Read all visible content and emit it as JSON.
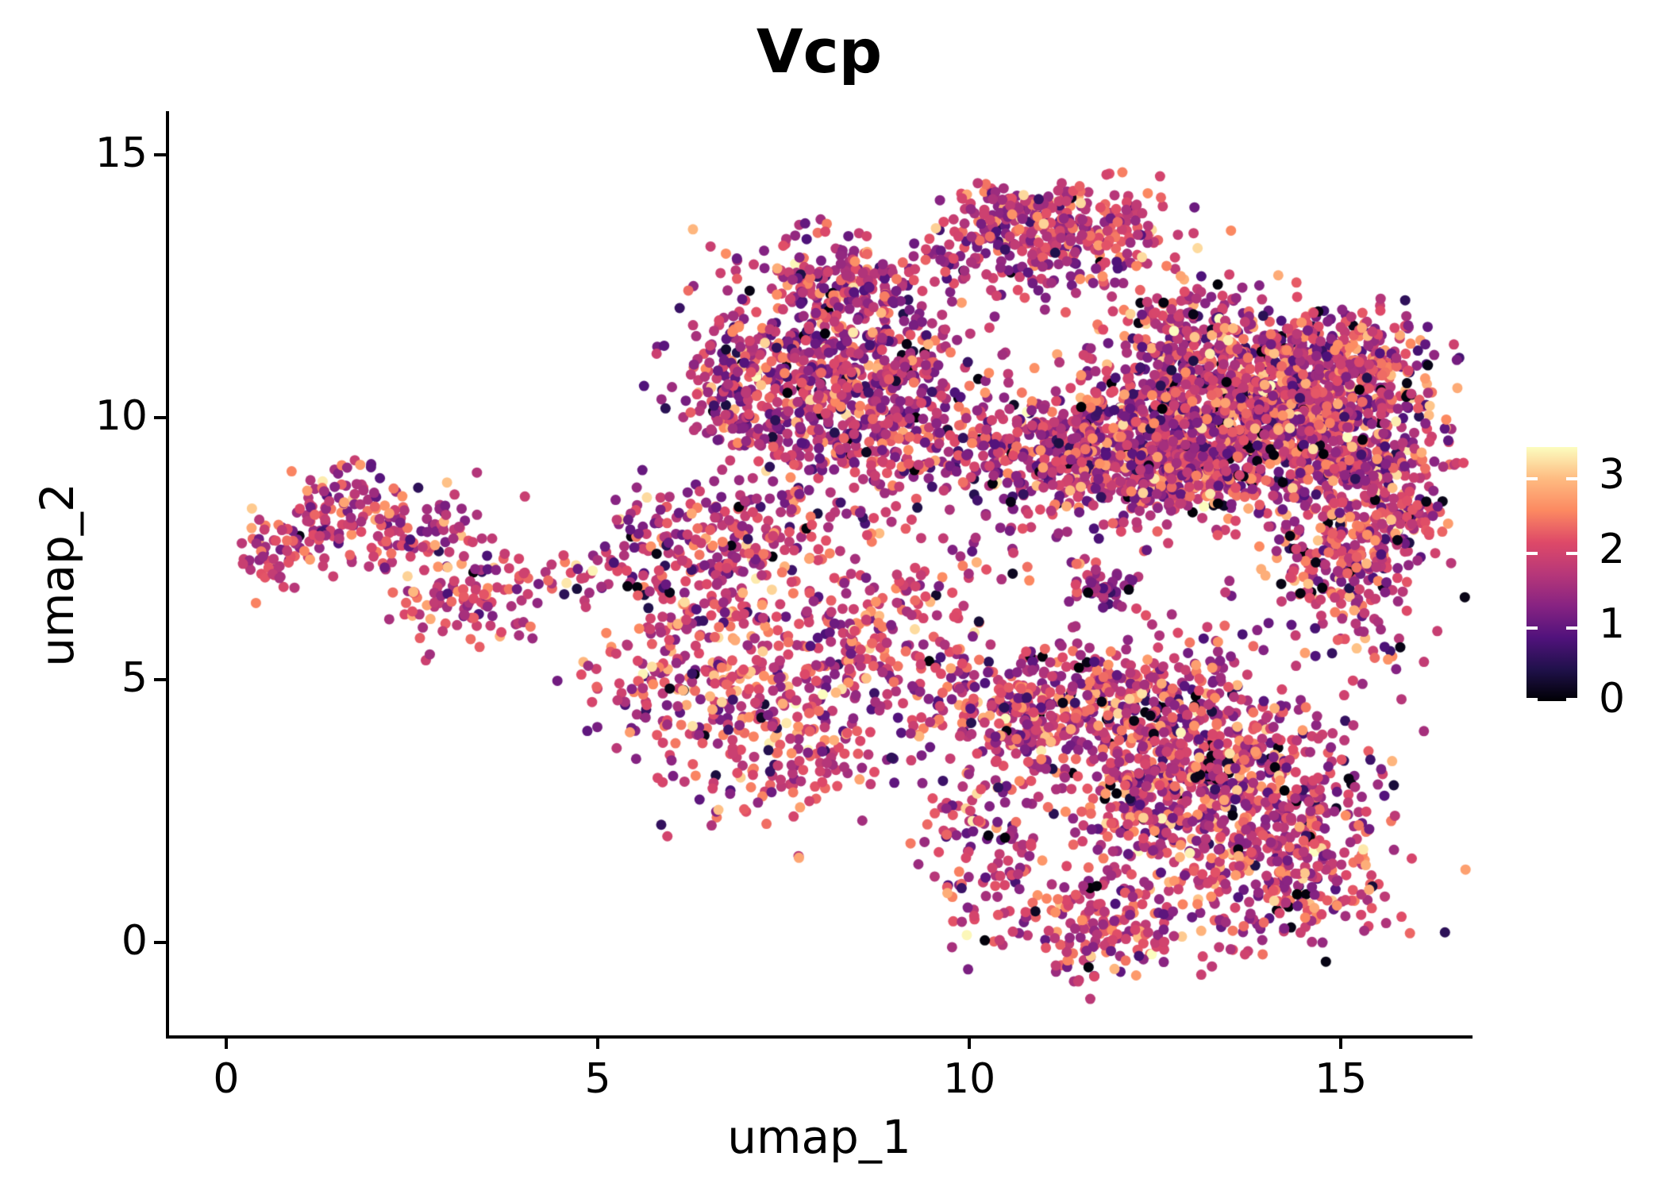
{
  "title": "Vcp",
  "axes": {
    "x": {
      "label": "umap_1",
      "ticks": [
        0,
        5,
        10,
        15
      ]
    },
    "y": {
      "label": "umap_2",
      "ticks": [
        0,
        5,
        10,
        15
      ]
    }
  },
  "colorbar": {
    "ticks": [
      0,
      1,
      2,
      3
    ]
  },
  "chart_data": {
    "type": "scatter",
    "title": "Vcp",
    "xlabel": "umap_1",
    "ylabel": "umap_2",
    "xlim": [
      -0.79,
      16.75
    ],
    "ylim": [
      -1.8,
      15.8
    ],
    "x_ticks": [
      0,
      5,
      10,
      15
    ],
    "y_ticks": [
      0,
      5,
      10,
      15
    ],
    "grid": false,
    "legend_position": "right-colorbar",
    "color_scale": {
      "name": "magma",
      "min": 0,
      "max": 3.4,
      "colorbar_ticks": [
        0,
        1,
        2,
        3
      ],
      "stops": [
        "#000004",
        "#20114b",
        "#51127c",
        "#872382",
        "#b73779",
        "#de4968",
        "#fc8961",
        "#febb81",
        "#fcfdbf"
      ]
    },
    "point_radius_px": 6.5,
    "seed": 42,
    "n_points": 7658,
    "p_zero": 0.028,
    "p_high": 0.012,
    "clusters": [
      {
        "name": "left-a1",
        "n": 55,
        "cx": 0.6,
        "cy": 7.35,
        "sx": 0.3,
        "sy": 0.27,
        "vmean": 2.0,
        "vsd": 0.5
      },
      {
        "name": "left-a2",
        "n": 95,
        "cx": 1.5,
        "cy": 8.3,
        "sx": 0.45,
        "sy": 0.5,
        "vmean": 1.85,
        "vsd": 0.55
      },
      {
        "name": "left-a3",
        "n": 85,
        "cx": 2.5,
        "cy": 7.8,
        "sx": 0.55,
        "sy": 0.4,
        "vmean": 1.8,
        "vsd": 0.55
      },
      {
        "name": "left-a4",
        "n": 90,
        "cx": 3.1,
        "cy": 6.4,
        "sx": 0.42,
        "sy": 0.45,
        "vmean": 1.85,
        "vsd": 0.55
      },
      {
        "name": "left-a5",
        "n": 18,
        "cx": 3.95,
        "cy": 6.9,
        "sx": 0.35,
        "sy": 0.3,
        "vmean": 1.5,
        "vsd": 0.6
      },
      {
        "name": "mid-b1",
        "n": 120,
        "cx": 6.1,
        "cy": 7.6,
        "sx": 0.55,
        "sy": 0.6,
        "vmean": 1.8,
        "vsd": 0.6
      },
      {
        "name": "mid-b2",
        "n": 100,
        "cx": 7.3,
        "cy": 7.85,
        "sx": 0.6,
        "sy": 0.45,
        "vmean": 1.8,
        "vsd": 0.6
      },
      {
        "name": "mid-b3",
        "n": 150,
        "cx": 6.3,
        "cy": 5.6,
        "sx": 0.6,
        "sy": 0.95,
        "vmean": 1.9,
        "vsd": 0.6
      },
      {
        "name": "mid-b4",
        "n": 260,
        "cx": 7.6,
        "cy": 5.3,
        "sx": 0.8,
        "sy": 1.0,
        "vmean": 1.95,
        "vsd": 0.6
      },
      {
        "name": "mid-b5",
        "n": 120,
        "cx": 8.8,
        "cy": 5.6,
        "sx": 0.55,
        "sy": 0.9,
        "vmean": 1.8,
        "vsd": 0.6
      },
      {
        "name": "mid-b6",
        "n": 80,
        "cx": 7.6,
        "cy": 3.4,
        "sx": 0.55,
        "sy": 0.55,
        "vmean": 1.9,
        "vsd": 0.55
      },
      {
        "name": "mid-b7",
        "n": 40,
        "cx": 5.6,
        "cy": 4.7,
        "sx": 0.4,
        "sy": 0.6,
        "vmean": 1.8,
        "vsd": 0.6
      },
      {
        "name": "top-c1",
        "n": 200,
        "cx": 8.1,
        "cy": 12.6,
        "sx": 0.6,
        "sy": 0.45,
        "vmean": 1.7,
        "vsd": 0.6
      },
      {
        "name": "top-c2",
        "n": 240,
        "cx": 7.6,
        "cy": 11.2,
        "sx": 0.7,
        "sy": 0.65,
        "vmean": 1.65,
        "vsd": 0.6
      },
      {
        "name": "top-c3",
        "n": 240,
        "cx": 8.8,
        "cy": 10.9,
        "sx": 0.7,
        "sy": 0.7,
        "vmean": 1.7,
        "vsd": 0.6
      },
      {
        "name": "top-c4",
        "n": 140,
        "cx": 7.0,
        "cy": 10.3,
        "sx": 0.45,
        "sy": 0.6,
        "vmean": 1.6,
        "vsd": 0.6
      },
      {
        "name": "top-c5",
        "n": 280,
        "cx": 8.7,
        "cy": 9.6,
        "sx": 0.95,
        "sy": 0.55,
        "vmean": 1.7,
        "vsd": 0.6
      },
      {
        "name": "peak-d1",
        "n": 150,
        "cx": 10.8,
        "cy": 13.9,
        "sx": 0.55,
        "sy": 0.33,
        "vmean": 1.8,
        "vsd": 0.55
      },
      {
        "name": "peak-d2",
        "n": 120,
        "cx": 11.9,
        "cy": 13.55,
        "sx": 0.6,
        "sy": 0.45,
        "vmean": 1.8,
        "vsd": 0.55
      },
      {
        "name": "peak-d3",
        "n": 80,
        "cx": 10.3,
        "cy": 13.2,
        "sx": 0.45,
        "sy": 0.35,
        "vmean": 1.75,
        "vsd": 0.55
      },
      {
        "name": "peak-d4",
        "n": 50,
        "cx": 11.3,
        "cy": 12.9,
        "sx": 0.7,
        "sy": 0.3,
        "vmean": 1.7,
        "vsd": 0.55
      },
      {
        "name": "right-e1",
        "n": 600,
        "cx": 14.7,
        "cy": 9.9,
        "sx": 0.75,
        "sy": 0.75,
        "vmean": 1.8,
        "vsd": 0.6
      },
      {
        "name": "right-e2",
        "n": 450,
        "cx": 13.5,
        "cy": 10.3,
        "sx": 0.75,
        "sy": 0.7,
        "vmean": 1.75,
        "vsd": 0.6
      },
      {
        "name": "right-e3",
        "n": 350,
        "cx": 12.4,
        "cy": 9.9,
        "sx": 0.7,
        "sy": 0.65,
        "vmean": 1.7,
        "vsd": 0.6
      },
      {
        "name": "right-e4",
        "n": 130,
        "cx": 12.9,
        "cy": 11.9,
        "sx": 0.5,
        "sy": 0.4,
        "vmean": 1.75,
        "vsd": 0.6
      },
      {
        "name": "right-e5",
        "n": 130,
        "cx": 14.0,
        "cy": 11.2,
        "sx": 0.55,
        "sy": 0.45,
        "vmean": 1.75,
        "vsd": 0.6
      },
      {
        "name": "right-e6",
        "n": 200,
        "cx": 15.1,
        "cy": 11.2,
        "sx": 0.55,
        "sy": 0.5,
        "vmean": 1.8,
        "vsd": 0.6
      },
      {
        "name": "right-e7",
        "n": 340,
        "cx": 12.6,
        "cy": 8.9,
        "sx": 1.0,
        "sy": 0.55,
        "vmean": 1.75,
        "vsd": 0.6
      },
      {
        "name": "right-e8",
        "n": 250,
        "cx": 11.2,
        "cy": 9.3,
        "sx": 0.7,
        "sy": 0.6,
        "vmean": 1.65,
        "vsd": 0.6
      },
      {
        "name": "right-e9",
        "n": 150,
        "cx": 15.4,
        "cy": 8.8,
        "sx": 0.5,
        "sy": 0.45,
        "vmean": 1.8,
        "vsd": 0.6
      },
      {
        "name": "arm-f1",
        "n": 150,
        "cx": 15.2,
        "cy": 7.7,
        "sx": 0.55,
        "sy": 0.5,
        "vmean": 1.85,
        "vsd": 0.6
      },
      {
        "name": "arm-f2",
        "n": 100,
        "cx": 14.9,
        "cy": 6.9,
        "sx": 0.5,
        "sy": 0.4,
        "vmean": 1.8,
        "vsd": 0.6
      },
      {
        "name": "arm-f3",
        "n": 45,
        "cx": 15.85,
        "cy": 7.9,
        "sx": 0.28,
        "sy": 0.4,
        "vmean": 1.8,
        "vsd": 0.6
      },
      {
        "name": "bot-g1",
        "n": 250,
        "cx": 10.6,
        "cy": 4.3,
        "sx": 0.6,
        "sy": 0.6,
        "vmean": 1.85,
        "vsd": 0.6
      },
      {
        "name": "bot-g2",
        "n": 300,
        "cx": 12.0,
        "cy": 4.6,
        "sx": 0.8,
        "sy": 0.55,
        "vmean": 1.8,
        "vsd": 0.6
      },
      {
        "name": "bot-g3",
        "n": 500,
        "cx": 13.8,
        "cy": 2.9,
        "sx": 0.9,
        "sy": 1.0,
        "vmean": 1.85,
        "vsd": 0.6
      },
      {
        "name": "bot-g4",
        "n": 280,
        "cx": 12.7,
        "cy": 2.8,
        "sx": 0.75,
        "sy": 0.75,
        "vmean": 1.8,
        "vsd": 0.6
      },
      {
        "name": "bot-g5",
        "n": 200,
        "cx": 11.7,
        "cy": 0.35,
        "sx": 0.75,
        "sy": 0.55,
        "vmean": 1.9,
        "vsd": 0.55
      },
      {
        "name": "bot-g6",
        "n": 110,
        "cx": 10.3,
        "cy": 1.9,
        "sx": 0.5,
        "sy": 0.8,
        "vmean": 1.8,
        "vsd": 0.6
      },
      {
        "name": "bot-g7",
        "n": 200,
        "cx": 14.3,
        "cy": 1.2,
        "sx": 0.7,
        "sy": 0.6,
        "vmean": 1.85,
        "vsd": 0.6
      },
      {
        "name": "clump-h1",
        "n": 50,
        "cx": 11.75,
        "cy": 6.8,
        "sx": 0.22,
        "sy": 0.18,
        "vmean": 1.4,
        "vsd": 0.5
      },
      {
        "name": "sparse-s1",
        "n": 28,
        "cx": 4.8,
        "cy": 6.9,
        "sx": 0.5,
        "sy": 0.35,
        "vmean": 1.5,
        "vsd": 0.6
      },
      {
        "name": "sparse-s2",
        "n": 40,
        "cx": 9.9,
        "cy": 7.7,
        "sx": 0.65,
        "sy": 0.8,
        "vmean": 1.6,
        "vsd": 0.6
      },
      {
        "name": "sparse-s3",
        "n": 25,
        "cx": 15.6,
        "cy": 5.9,
        "sx": 0.4,
        "sy": 0.5,
        "vmean": 1.7,
        "vsd": 0.6
      },
      {
        "name": "sparse-s4",
        "n": 12,
        "cx": 6.3,
        "cy": 2.9,
        "sx": 0.5,
        "sy": 0.4,
        "vmean": 1.7,
        "vsd": 0.6
      },
      {
        "name": "sparse-s5",
        "n": 15,
        "cx": 9.4,
        "cy": 6.3,
        "sx": 0.45,
        "sy": 0.6,
        "vmean": 1.6,
        "vsd": 0.6
      },
      {
        "name": "sparse-s6",
        "n": 15,
        "cx": 10.3,
        "cy": 12.6,
        "sx": 0.35,
        "sy": 0.5,
        "vmean": 1.7,
        "vsd": 0.6
      },
      {
        "name": "sparse-s7",
        "n": 25,
        "cx": 13.5,
        "cy": 5.8,
        "sx": 1.0,
        "sy": 0.35,
        "vmean": 1.75,
        "vsd": 0.6
      }
    ]
  }
}
